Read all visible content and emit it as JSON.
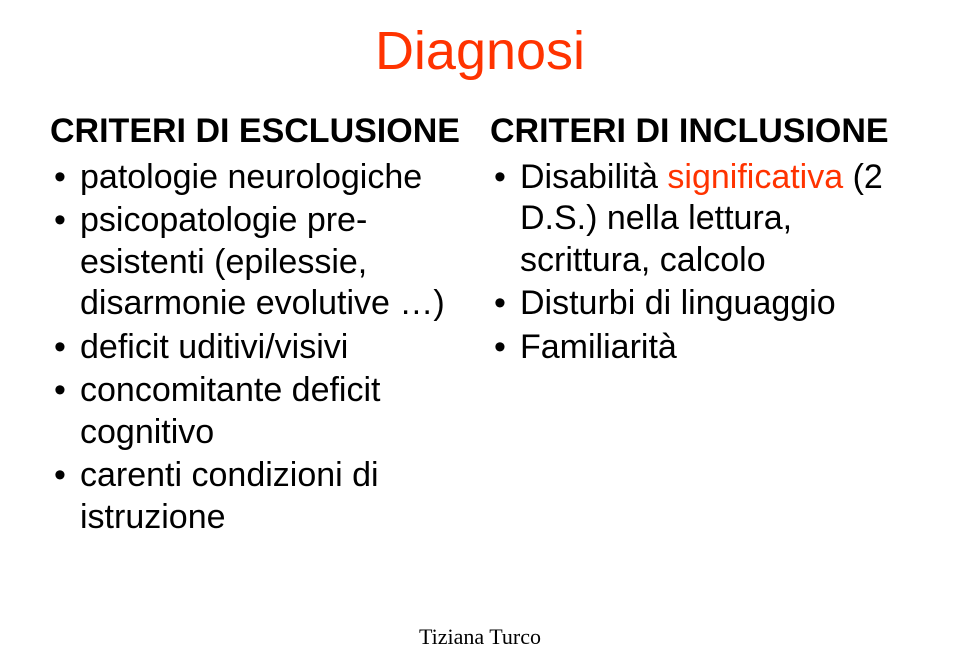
{
  "title": {
    "text": "Diagnosi",
    "color": "#ff3300"
  },
  "left": {
    "heading": "CRITERI DI ESCLUSIONE",
    "items": [
      {
        "segments": [
          {
            "text": "patologie neurologiche",
            "color": "#000000"
          }
        ]
      },
      {
        "segments": [
          {
            "text": "psicopatologie pre-esistenti (epilessie, disarmonie evolutive …)",
            "color": "#000000"
          }
        ]
      },
      {
        "segments": [
          {
            "text": "deficit uditivi/visivi",
            "color": "#000000"
          }
        ]
      },
      {
        "segments": [
          {
            "text": "concomitante deficit cognitivo",
            "color": "#000000"
          }
        ]
      },
      {
        "segments": [
          {
            "text": "carenti condizioni di istruzione",
            "color": "#000000"
          }
        ]
      }
    ]
  },
  "right": {
    "heading": "CRITERI DI INCLUSIONE",
    "items": [
      {
        "segments": [
          {
            "text": "Disabilità ",
            "color": "#000000"
          },
          {
            "text": "significativa",
            "color": "#ff3300"
          },
          {
            "text": " (2 D.S.) nella lettura, scrittura, calcolo",
            "color": "#000000"
          }
        ]
      },
      {
        "segments": [
          {
            "text": "Disturbi di linguaggio",
            "color": "#000000"
          }
        ]
      },
      {
        "segments": [
          {
            "text": "Familiarità",
            "color": "#000000"
          }
        ]
      }
    ]
  },
  "footer": "Tiziana Turco"
}
